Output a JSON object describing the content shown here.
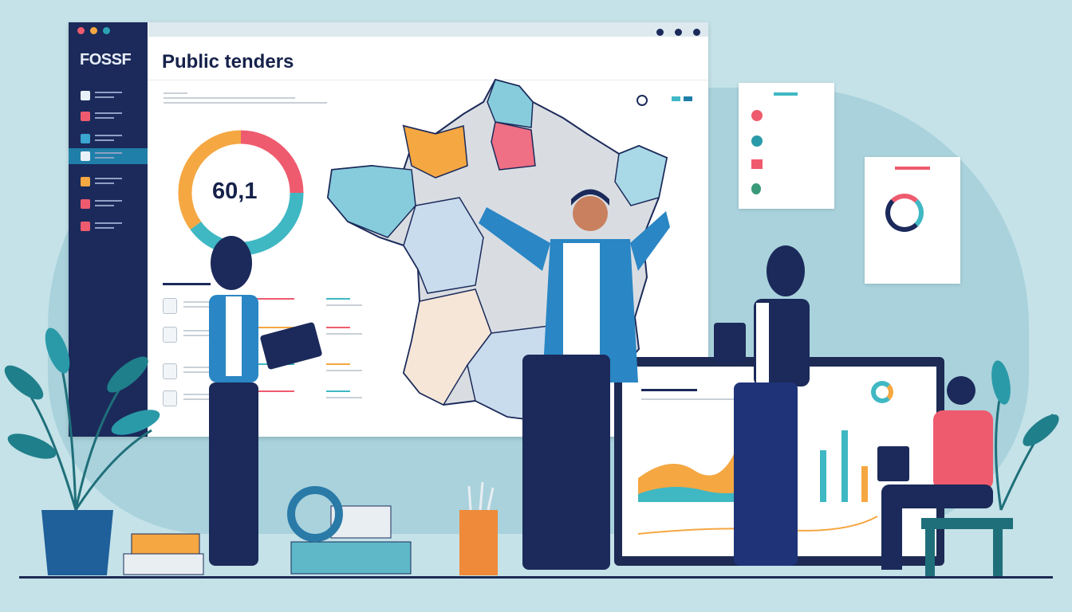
{
  "sidebar": {
    "logo": "FOSSF",
    "active_index": 3,
    "items": [
      {
        "icon": "chart-icon",
        "color": "#e9f1f8"
      },
      {
        "icon": "lock-icon",
        "color": "#ef5b6e"
      },
      {
        "icon": "globe-icon",
        "color": "#3aa7d0"
      },
      {
        "icon": "document-icon",
        "color": "#e9f1f8"
      },
      {
        "icon": "folder-icon",
        "color": "#f5a742"
      },
      {
        "icon": "mail-icon",
        "color": "#ef5b6e"
      },
      {
        "icon": "calendar-icon",
        "color": "#ef5b6e"
      }
    ]
  },
  "header": {
    "title": "Public tenders"
  },
  "donut": {
    "value": "60,1",
    "segments": [
      {
        "color": "#ef5b6e",
        "fraction": 0.25
      },
      {
        "color": "#3fb8c4",
        "fraction": 0.4
      },
      {
        "color": "#f5a742",
        "fraction": 0.35
      }
    ]
  },
  "colors": {
    "navy": "#1b2a5a",
    "teal": "#3fb8c4",
    "orange": "#f5a742",
    "red": "#ef5b6e",
    "background": "#c4e2e8"
  }
}
